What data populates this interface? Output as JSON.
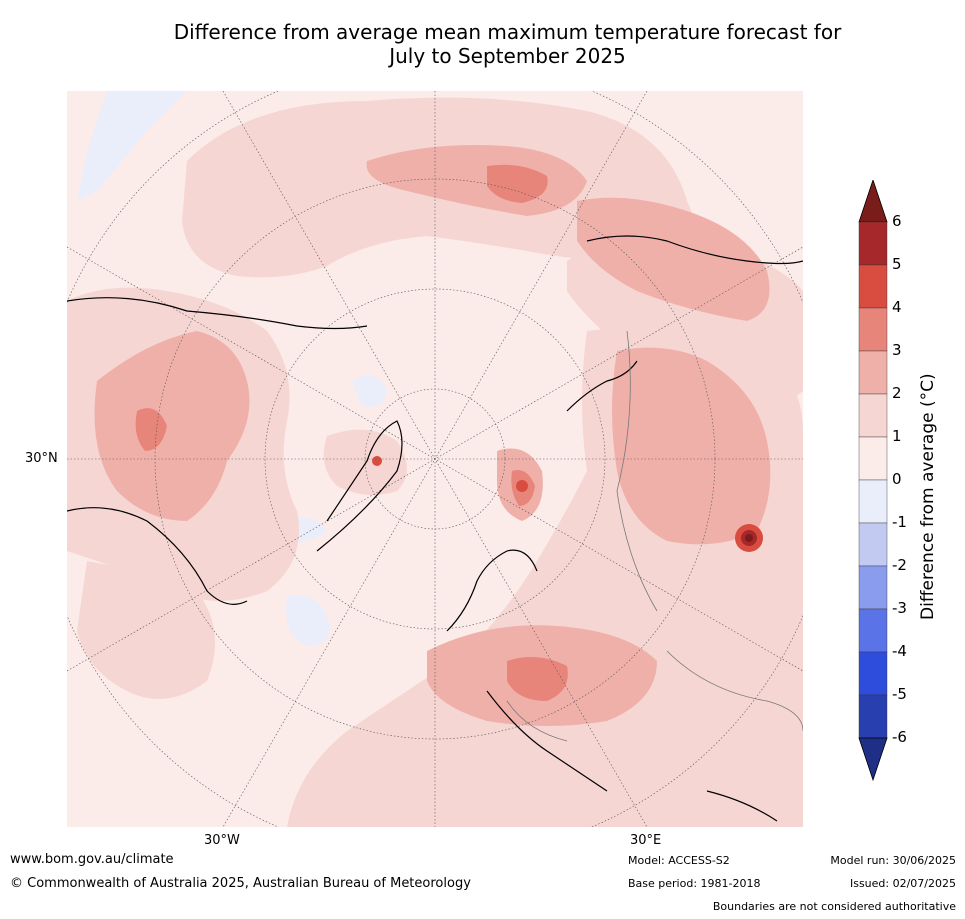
{
  "title_line1": "Difference from average mean maximum temperature forecast for",
  "title_line2": "July to September 2025",
  "map": {
    "projection": "north-polar-stereographic",
    "lat_label": "30°N",
    "lon_labels": [
      "30°W",
      "30°E"
    ]
  },
  "colorbar": {
    "label": "Difference from average (°C)",
    "ticks": [
      "6",
      "5",
      "4",
      "3",
      "2",
      "1",
      "0",
      "-1",
      "-2",
      "-3",
      "-4",
      "-5",
      "-6"
    ],
    "colors": [
      "#a6282a",
      "#d94c40",
      "#e8857a",
      "#f0b0aa",
      "#f6d6d3",
      "#fbebe9",
      "#eaeefb",
      "#c2caf2",
      "#8a9ced",
      "#5a73e6",
      "#2f4ddc",
      "#283fb0"
    ],
    "over_color": "#7a1c19",
    "under_color": "#1f2e86"
  },
  "footer": {
    "url": "www.bom.gov.au/climate",
    "copyright": "© Commonwealth of Australia 2025, Australian Bureau of Meteorology",
    "model": "Model: ACCESS-S2",
    "base_period": "Base period: 1981-2018",
    "model_run": "Model run: 30/06/2025",
    "issued": "Issued: 02/07/2025",
    "disclaimer": "Boundaries are not considered authoritative"
  }
}
